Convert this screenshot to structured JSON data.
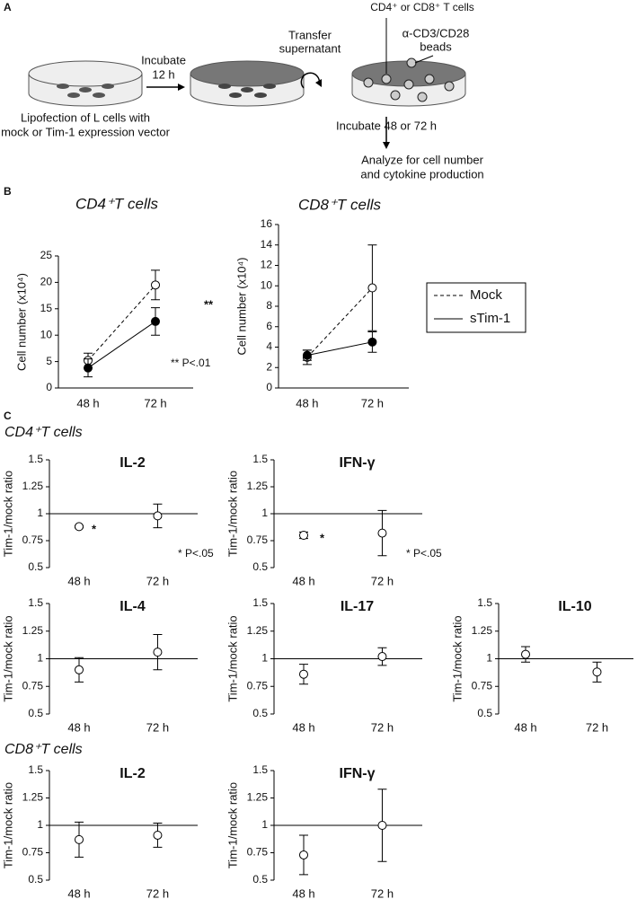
{
  "panel_a": {
    "label": "A",
    "incubate": [
      "Incubate",
      "12 h"
    ],
    "transfer": [
      "Transfer",
      "supernatant"
    ],
    "cells": "CD4⁺ or CD8⁺ T cells",
    "beads": [
      "α-CD3/CD28",
      "beads"
    ],
    "lipofection": [
      "Lipofection of L cells with",
      "mock or Tim-1 expression vector"
    ],
    "incubate2": "Incubate 48 or 72 h",
    "analyze": [
      "Analyze for cell number",
      "and cytokine production"
    ]
  },
  "panel_labels": {
    "b": "B",
    "c": "C"
  },
  "section_titles": [
    "CD4⁺T cells",
    "CD8⁺T cells"
  ],
  "chart_data": [
    {
      "type": "line",
      "title": "CD4⁺T cells",
      "ylabel": "Cell number (x10⁴)",
      "categories": [
        "48 h",
        "72 h"
      ],
      "ylim": [
        0,
        25
      ],
      "yticks": [
        0,
        5,
        10,
        15,
        20,
        25
      ],
      "series": [
        {
          "color": "#000000",
          "dash": true,
          "marker": "open",
          "values": [
            5.2,
            19.5
          ],
          "error": [
            1.4,
            2.8
          ]
        },
        {
          "color": "#000000",
          "dash": false,
          "marker": "filled",
          "values": [
            3.8,
            12.6
          ],
          "error": [
            1.7,
            2.6
          ]
        }
      ],
      "annotations": [
        "**",
        "** P<.01"
      ]
    },
    {
      "type": "line",
      "title": "CD8⁺T cells",
      "ylabel": "Cell number (x10⁴)",
      "categories": [
        "48 h",
        "72 h"
      ],
      "ylim": [
        0,
        16
      ],
      "yticks": [
        0,
        2,
        4,
        6,
        8,
        10,
        12,
        14,
        16
      ],
      "legend": "right",
      "series": [
        {
          "name": "Mock",
          "color": "#000000",
          "dash": true,
          "marker": "open",
          "values": [
            3.0,
            9.8
          ],
          "error": [
            0.7,
            4.2
          ]
        },
        {
          "name": "sTim-1",
          "color": "#000000",
          "dash": false,
          "marker": "filled",
          "values": [
            3.2,
            4.5
          ],
          "error": [
            0.5,
            1.0
          ]
        }
      ]
    },
    {
      "type": "point",
      "title": "IL-2",
      "ylabel": "Tim-1/mock ratio",
      "categories": [
        "48 h",
        "72 h"
      ],
      "ylim": [
        0.5,
        1.5
      ],
      "yticks": [
        0.5,
        0.75,
        1,
        1.25,
        1.5
      ],
      "refline": 1,
      "series": [
        {
          "color": "#000000",
          "marker": "open",
          "values": [
            0.88,
            0.98
          ],
          "error": [
            0.01,
            0.11
          ]
        }
      ],
      "annotations": [
        "*",
        "* P<.05"
      ]
    },
    {
      "type": "point",
      "title": "IFN-γ",
      "ylabel": "Tim-1/mock ratio",
      "categories": [
        "48 h",
        "72 h"
      ],
      "ylim": [
        0.5,
        1.5
      ],
      "yticks": [
        0.5,
        0.75,
        1,
        1.25,
        1.5
      ],
      "refline": 1,
      "series": [
        {
          "color": "#000000",
          "marker": "open",
          "values": [
            0.8,
            0.82
          ],
          "error": [
            0.03,
            0.21
          ]
        }
      ],
      "annotations": [
        "*",
        "* P<.05"
      ]
    },
    {
      "type": "point",
      "title": "IL-4",
      "ylabel": "Tim-1/mock ratio",
      "categories": [
        "48 h",
        "72 h"
      ],
      "ylim": [
        0.5,
        1.5
      ],
      "yticks": [
        0.5,
        0.75,
        1,
        1.25,
        1.5
      ],
      "refline": 1,
      "series": [
        {
          "color": "#000000",
          "marker": "open",
          "values": [
            0.9,
            1.06
          ],
          "error": [
            0.11,
            0.16
          ]
        }
      ]
    },
    {
      "type": "point",
      "title": "IL-17",
      "ylabel": "Tim-1/mock ratio",
      "categories": [
        "48 h",
        "72 h"
      ],
      "ylim": [
        0.5,
        1.5
      ],
      "yticks": [
        0.5,
        0.75,
        1,
        1.25,
        1.5
      ],
      "refline": 1,
      "series": [
        {
          "color": "#000000",
          "marker": "open",
          "values": [
            0.86,
            1.02
          ],
          "error": [
            0.09,
            0.08
          ]
        }
      ]
    },
    {
      "type": "point",
      "title": "IL-10",
      "ylabel": "Tim-1/mock ratio",
      "categories": [
        "48 h",
        "72 h"
      ],
      "ylim": [
        0.5,
        1.5
      ],
      "yticks": [
        0.5,
        0.75,
        1,
        1.25,
        1.5
      ],
      "refline": 1,
      "series": [
        {
          "color": "#000000",
          "marker": "open",
          "values": [
            1.04,
            0.88
          ],
          "error": [
            0.07,
            0.09
          ]
        }
      ]
    },
    {
      "type": "point",
      "title": "IL-2",
      "ylabel": "Tim-1/mock ratio",
      "categories": [
        "48 h",
        "72 h"
      ],
      "ylim": [
        0.5,
        1.5
      ],
      "yticks": [
        0.5,
        0.75,
        1,
        1.25,
        1.5
      ],
      "refline": 1,
      "series": [
        {
          "color": "#000000",
          "marker": "open",
          "values": [
            0.87,
            0.91
          ],
          "error": [
            0.16,
            0.11
          ]
        }
      ]
    },
    {
      "type": "point",
      "title": "IFN-γ",
      "ylabel": "Tim-1/mock ratio",
      "categories": [
        "48 h",
        "72 h"
      ],
      "ylim": [
        0.5,
        1.5
      ],
      "yticks": [
        0.5,
        0.75,
        1,
        1.25,
        1.5
      ],
      "refline": 1,
      "series": [
        {
          "color": "#000000",
          "marker": "open",
          "values": [
            0.73,
            1.0
          ],
          "error": [
            0.18,
            0.33
          ]
        }
      ]
    }
  ]
}
